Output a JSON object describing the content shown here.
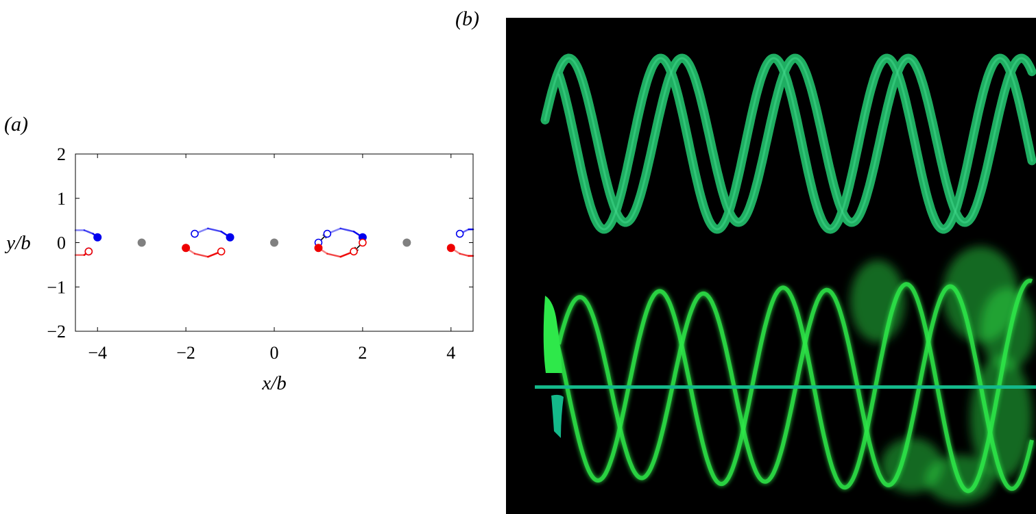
{
  "panel_a": {
    "label": "(a)",
    "chart_data": {
      "type": "scatter",
      "xlabel": "x/b",
      "ylabel": "y/b",
      "xlim": [
        -4.5,
        4.5
      ],
      "ylim": [
        -2,
        2
      ],
      "xticks": [
        -4,
        -2,
        0,
        2,
        4
      ],
      "yticks": [
        -2,
        -1,
        0,
        1,
        2
      ],
      "xtick_labels": [
        "−4",
        "−2",
        "0",
        "2",
        "4"
      ],
      "ytick_labels": [
        "−2",
        "−1",
        "0",
        "1",
        "2"
      ],
      "grid": false,
      "series": [
        {
          "role": "center vortices",
          "color": "#808080",
          "marker": "filled",
          "points": [
            [
              -3,
              0
            ],
            [
              0,
              0
            ],
            [
              3,
              0
            ]
          ]
        },
        {
          "role": "upper vortices (current)",
          "color": "#0000ee",
          "marker": "filled",
          "points": [
            [
              -4,
              0.12
            ],
            [
              -1,
              0.12
            ],
            [
              2,
              0.12
            ]
          ]
        },
        {
          "role": "upper vortices (earlier)",
          "color": "#0000ee",
          "marker": "open",
          "points": [
            [
              -4.2,
              -0.2
            ],
            [
              -1.8,
              0.2
            ],
            [
              1.2,
              0.2
            ],
            [
              1,
              0
            ],
            [
              4.2,
              0.2
            ]
          ]
        },
        {
          "role": "lower vortices (current)",
          "color": "#ee0000",
          "marker": "filled",
          "points": [
            [
              -2,
              -0.12
            ],
            [
              1,
              -0.12
            ],
            [
              4,
              -0.12
            ]
          ]
        },
        {
          "role": "lower vortices (earlier)",
          "color": "#ee0000",
          "marker": "open",
          "points": [
            [
              -4.2,
              -0.2
            ],
            [
              -1.2,
              -0.2
            ],
            [
              1.8,
              -0.2
            ],
            [
              2,
              0
            ]
          ]
        }
      ],
      "trails": [
        {
          "color": "#0000ee",
          "points": [
            [
              -4.5,
              0.28
            ],
            [
              -4.3,
              0.28
            ],
            [
              -4.1,
              0.2
            ],
            [
              -4,
              0.12
            ]
          ]
        },
        {
          "color": "#0000ee",
          "points": [
            [
              -1.8,
              0.2
            ],
            [
              -1.5,
              0.32
            ],
            [
              -1.2,
              0.25
            ],
            [
              -1,
              0.12
            ]
          ]
        },
        {
          "color": "#0000ee",
          "points": [
            [
              1.2,
              0.2
            ],
            [
              1.5,
              0.32
            ],
            [
              1.8,
              0.25
            ],
            [
              2,
              0.12
            ]
          ]
        },
        {
          "color": "#0000ee",
          "points": [
            [
              4.2,
              0.2
            ],
            [
              4.4,
              0.3
            ],
            [
              4.5,
              0.3
            ]
          ]
        },
        {
          "color": "#ee0000",
          "points": [
            [
              -4.5,
              -0.28
            ],
            [
              -4.3,
              -0.28
            ],
            [
              -4.2,
              -0.2
            ]
          ]
        },
        {
          "color": "#ee0000",
          "points": [
            [
              -2,
              -0.12
            ],
            [
              -1.8,
              -0.25
            ],
            [
              -1.5,
              -0.32
            ],
            [
              -1.2,
              -0.2
            ]
          ]
        },
        {
          "color": "#ee0000",
          "points": [
            [
              1,
              -0.12
            ],
            [
              1.2,
              -0.25
            ],
            [
              1.5,
              -0.32
            ],
            [
              1.8,
              -0.2
            ]
          ]
        },
        {
          "color": "#ee0000",
          "points": [
            [
              4,
              -0.12
            ],
            [
              4.2,
              -0.25
            ],
            [
              4.4,
              -0.3
            ],
            [
              4.5,
              -0.3
            ]
          ]
        }
      ],
      "arrows": [
        {
          "from": [
            1,
            0
          ],
          "to": [
            1.2,
            0.2
          ],
          "color": "#000000"
        },
        {
          "from": [
            2,
            0
          ],
          "to": [
            1.8,
            -0.2
          ],
          "color": "#000000"
        }
      ]
    }
  },
  "panel_b": {
    "label": "(b)",
    "colors": {
      "background": "#000000",
      "helix_top": "#1fae62",
      "helix_top_highlight": "#3fd98a",
      "helix_bottom": "#2ee84a",
      "hub": "#14b88a"
    }
  }
}
